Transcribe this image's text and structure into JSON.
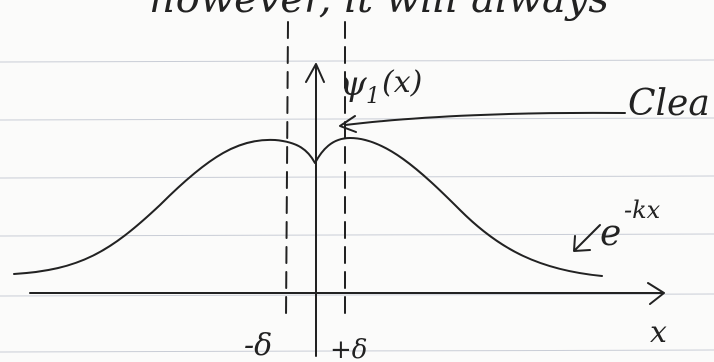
{
  "top_text": "however, it will always",
  "psi_symbol": "ψ",
  "psi_subscript": "1",
  "psi_argument": "(x)",
  "annotation": "Clea",
  "exp_base": "e",
  "exp_power": "-kx",
  "x_axis_label": "x",
  "minus_delta": "-δ",
  "plus_delta": "+δ"
}
